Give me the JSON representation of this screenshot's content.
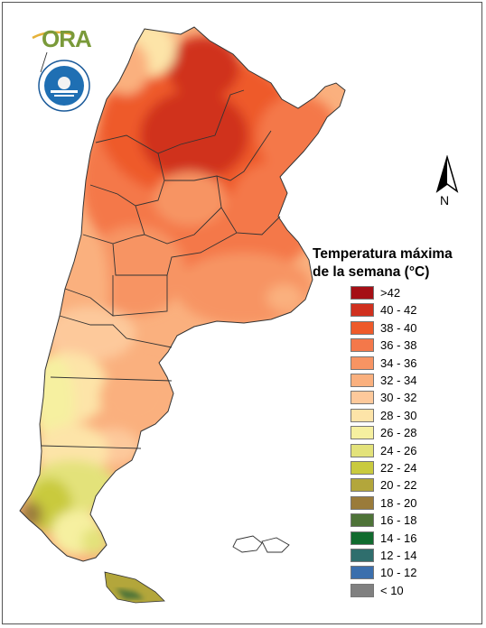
{
  "legend": {
    "title_line1": "Temperatura máxima",
    "title_line2": "de la semana (°C)",
    "items": [
      {
        "label": ">42",
        "color": "#a50f15"
      },
      {
        "label": "40 - 42",
        "color": "#d0301e"
      },
      {
        "label": "38 - 40",
        "color": "#ee5a2a"
      },
      {
        "label": "36 - 38",
        "color": "#f4784a"
      },
      {
        "label": "34 - 36",
        "color": "#f79463"
      },
      {
        "label": "32 - 34",
        "color": "#fab07e"
      },
      {
        "label": "30 - 32",
        "color": "#fdc99b"
      },
      {
        "label": "28 - 30",
        "color": "#fde4a8"
      },
      {
        "label": "26 - 28",
        "color": "#f6f0a0"
      },
      {
        "label": "24 - 26",
        "color": "#e3e27a"
      },
      {
        "label": "22 - 24",
        "color": "#c9ca3e"
      },
      {
        "label": "20 - 22",
        "color": "#b3a63b"
      },
      {
        "label": "18 - 20",
        "color": "#9a7b3a"
      },
      {
        "label": "16 - 18",
        "color": "#4e7338"
      },
      {
        "label": "14 - 16",
        "color": "#116b2e"
      },
      {
        "label": "12 - 14",
        "color": "#2f6e6d"
      },
      {
        "label": "10 - 12",
        "color": "#3b6fad"
      },
      {
        "label": "< 10",
        "color": "#808080"
      }
    ]
  },
  "north_arrow": {
    "label": "N"
  },
  "logos": {
    "ora_text": "ORA",
    "seal": "smn-seal-icon"
  }
}
